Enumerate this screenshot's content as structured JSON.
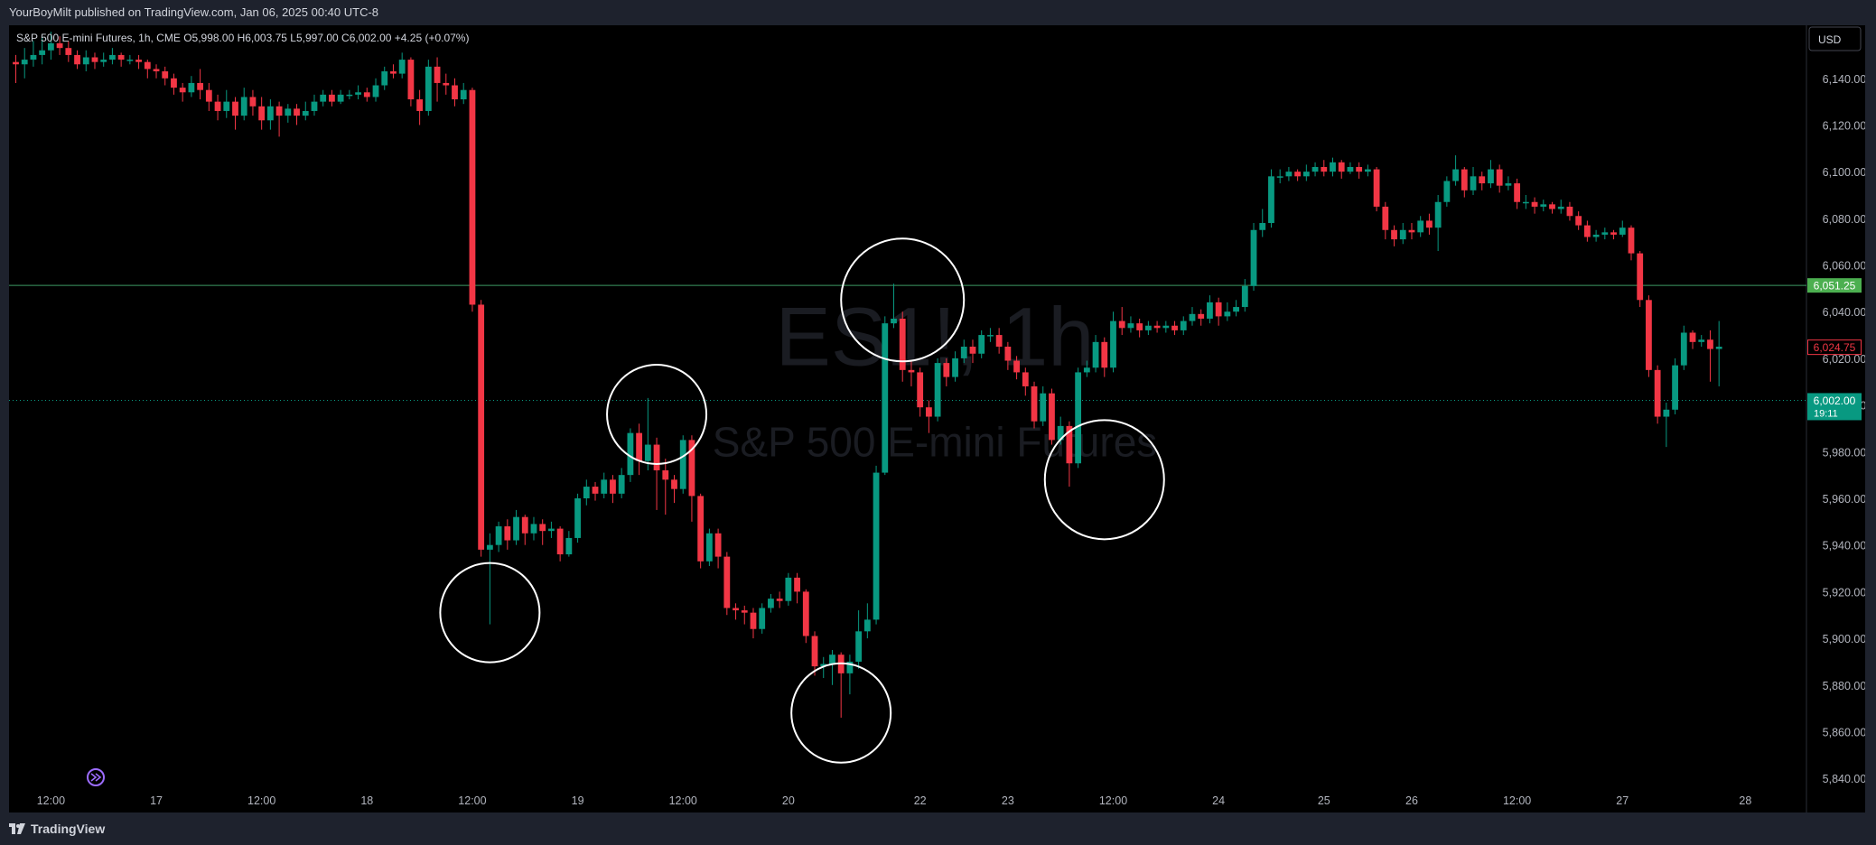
{
  "header": {
    "published": "YourBoyMilt published on TradingView.com, Jan 06, 2025 00:40 UTC-8"
  },
  "legend": {
    "symbol": "S&P 500 E-mini Futures, 1h, CME",
    "open_label": "O",
    "open": "5,998.00",
    "high_label": "H",
    "high": "6,003.75",
    "low_label": "L",
    "low": "5,997.00",
    "close_label": "C",
    "close": "6,002.00",
    "change": "+4.25 (+0.07%)"
  },
  "currency_button": "USD",
  "watermark": {
    "line1": "ES1!, 1h",
    "line2": "S&P 500 E-mini Futures"
  },
  "footer": {
    "brand": "TradingView"
  },
  "colors": {
    "up": "#089981",
    "down": "#f23645",
    "background": "#000000",
    "panel": "#1e222d",
    "hline": "#3d9a63",
    "circle": "#ffffff"
  },
  "chart_data": {
    "type": "candlestick",
    "yticks": [
      5840,
      5860,
      5880,
      5900,
      5920,
      5940,
      5960,
      5980,
      6000,
      6020,
      6040,
      6060,
      6080,
      6100,
      6120,
      6140
    ],
    "ylim": [
      5830,
      6155
    ],
    "xticks": [
      {
        "label": "12:00",
        "t": 4
      },
      {
        "label": "17",
        "t": 16
      },
      {
        "label": "12:00",
        "t": 28
      },
      {
        "label": "18",
        "t": 40
      },
      {
        "label": "12:00",
        "t": 52
      },
      {
        "label": "19",
        "t": 64
      },
      {
        "label": "12:00",
        "t": 76
      },
      {
        "label": "20",
        "t": 88
      },
      {
        "label": "22",
        "t": 103
      },
      {
        "label": "23",
        "t": 113
      },
      {
        "label": "12:00",
        "t": 125
      },
      {
        "label": "24",
        "t": 137
      },
      {
        "label": "25",
        "t": 149
      },
      {
        "label": "26",
        "t": 159
      },
      {
        "label": "12:00",
        "t": 171
      },
      {
        "label": "27",
        "t": 183
      },
      {
        "label": "28",
        "t": 197
      }
    ],
    "price_labels": [
      {
        "value": 6051.25,
        "text": "6,051.25",
        "style": "green"
      },
      {
        "value": 6024.75,
        "text": "6,024.75",
        "style": "red-outline"
      },
      {
        "value": 6002.0,
        "text": "6,002.00",
        "sub": "19:11",
        "style": "teal"
      }
    ],
    "horizontal_lines": [
      {
        "value": 6051.25,
        "style": "solid"
      },
      {
        "value": 6002.0,
        "style": "dotted"
      }
    ],
    "annotations_circles": [
      {
        "t": 54,
        "price": 5911,
        "r": 55
      },
      {
        "t": 73,
        "price": 5996,
        "r": 55
      },
      {
        "t": 94,
        "price": 5868,
        "r": 55
      },
      {
        "t": 101,
        "price": 6045,
        "r": 68
      },
      {
        "t": 124,
        "price": 5968,
        "r": 66
      }
    ],
    "candles": [
      [
        0,
        6147,
        6146,
        6150,
        6138
      ],
      [
        1,
        6146,
        6148,
        6153,
        6140
      ],
      [
        2,
        6148,
        6150,
        6156,
        6145
      ],
      [
        3,
        6150,
        6152,
        6158,
        6146
      ],
      [
        4,
        6152,
        6155,
        6160,
        6148
      ],
      [
        5,
        6155,
        6153,
        6158,
        6150
      ],
      [
        6,
        6153,
        6150,
        6156,
        6147
      ],
      [
        7,
        6150,
        6146,
        6152,
        6144
      ],
      [
        8,
        6146,
        6149,
        6152,
        6143
      ],
      [
        9,
        6149,
        6147,
        6151,
        6144
      ],
      [
        10,
        6147,
        6148,
        6151,
        6145
      ],
      [
        11,
        6148,
        6150,
        6153,
        6146
      ],
      [
        12,
        6150,
        6148,
        6151,
        6145
      ],
      [
        13,
        6148,
        6148,
        6150,
        6146
      ],
      [
        14,
        6148,
        6147,
        6150,
        6144
      ],
      [
        15,
        6147,
        6144,
        6148,
        6140
      ],
      [
        16,
        6144,
        6143,
        6146,
        6140
      ],
      [
        17,
        6143,
        6140,
        6145,
        6137
      ],
      [
        18,
        6140,
        6136,
        6142,
        6133
      ],
      [
        19,
        6136,
        6134,
        6138,
        6130
      ],
      [
        20,
        6134,
        6138,
        6141,
        6132
      ],
      [
        21,
        6138,
        6135,
        6144,
        6131
      ],
      [
        22,
        6135,
        6130,
        6138,
        6126
      ],
      [
        23,
        6130,
        6126,
        6133,
        6122
      ],
      [
        24,
        6126,
        6130,
        6135,
        6123
      ],
      [
        25,
        6130,
        6124,
        6132,
        6118
      ],
      [
        26,
        6124,
        6132,
        6136,
        6122
      ],
      [
        27,
        6132,
        6128,
        6135,
        6124
      ],
      [
        28,
        6128,
        6122,
        6132,
        6118
      ],
      [
        29,
        6122,
        6128,
        6131,
        6118
      ],
      [
        30,
        6128,
        6124,
        6130,
        6115
      ],
      [
        31,
        6124,
        6127,
        6129,
        6121
      ],
      [
        32,
        6127,
        6124,
        6129,
        6120
      ],
      [
        33,
        6124,
        6126,
        6130,
        6122
      ],
      [
        34,
        6126,
        6130,
        6133,
        6124
      ],
      [
        35,
        6130,
        6133,
        6135,
        6128
      ],
      [
        36,
        6133,
        6130,
        6135,
        6128
      ],
      [
        37,
        6130,
        6133,
        6135,
        6129
      ],
      [
        38,
        6133,
        6133,
        6135,
        6131
      ],
      [
        39,
        6133,
        6134,
        6137,
        6131
      ],
      [
        40,
        6134,
        6132,
        6136,
        6130
      ],
      [
        41,
        6132,
        6137,
        6140,
        6130
      ],
      [
        42,
        6137,
        6143,
        6145,
        6135
      ],
      [
        43,
        6143,
        6142,
        6146,
        6140
      ],
      [
        44,
        6142,
        6148,
        6151,
        6140
      ],
      [
        45,
        6148,
        6131,
        6149,
        6128
      ],
      [
        46,
        6131,
        6126,
        6135,
        6120
      ],
      [
        47,
        6126,
        6145,
        6148,
        6124
      ],
      [
        48,
        6145,
        6138,
        6149,
        6130
      ],
      [
        49,
        6138,
        6137,
        6142,
        6133
      ],
      [
        50,
        6137,
        6131,
        6140,
        6128
      ],
      [
        51,
        6131,
        6135,
        6138,
        6129
      ],
      [
        52,
        6135,
        6043,
        6136,
        6040
      ],
      [
        53,
        6043,
        5938,
        6045,
        5935
      ],
      [
        54,
        5938,
        5940,
        5945,
        5906
      ],
      [
        55,
        5940,
        5948,
        5950,
        5937
      ],
      [
        56,
        5948,
        5942,
        5951,
        5938
      ],
      [
        57,
        5942,
        5952,
        5955,
        5940
      ],
      [
        58,
        5952,
        5945,
        5953,
        5940
      ],
      [
        59,
        5945,
        5949,
        5952,
        5942
      ],
      [
        60,
        5949,
        5946,
        5951,
        5940
      ],
      [
        61,
        5946,
        5947,
        5950,
        5943
      ],
      [
        62,
        5947,
        5936,
        5948,
        5933
      ],
      [
        63,
        5936,
        5943,
        5946,
        5935
      ],
      [
        64,
        5943,
        5960,
        5962,
        5941
      ],
      [
        65,
        5960,
        5965,
        5968,
        5957
      ],
      [
        66,
        5965,
        5962,
        5967,
        5959
      ],
      [
        67,
        5962,
        5968,
        5971,
        5960
      ],
      [
        68,
        5968,
        5962,
        5970,
        5958
      ],
      [
        69,
        5962,
        5970,
        5973,
        5960
      ],
      [
        70,
        5970,
        5988,
        5990,
        5967
      ],
      [
        71,
        5988,
        5976,
        5992,
        5970
      ],
      [
        72,
        5976,
        5983,
        6003,
        5972
      ],
      [
        73,
        5983,
        5972,
        5986,
        5955
      ],
      [
        74,
        5972,
        5968,
        5977,
        5953
      ],
      [
        75,
        5968,
        5964,
        5970,
        5958
      ],
      [
        76,
        5964,
        5985,
        5987,
        5962
      ],
      [
        77,
        5985,
        5961,
        5987,
        5950
      ],
      [
        78,
        5961,
        5933,
        5962,
        5930
      ],
      [
        79,
        5933,
        5945,
        5947,
        5931
      ],
      [
        80,
        5945,
        5935,
        5947,
        5930
      ],
      [
        81,
        5935,
        5913,
        5937,
        5910
      ],
      [
        82,
        5913,
        5912,
        5915,
        5908
      ],
      [
        83,
        5912,
        5911,
        5914,
        5906
      ],
      [
        84,
        5911,
        5904,
        5913,
        5900
      ],
      [
        85,
        5904,
        5913,
        5915,
        5902
      ],
      [
        86,
        5913,
        5917,
        5919,
        5911
      ],
      [
        87,
        5917,
        5916,
        5920,
        5913
      ],
      [
        88,
        5916,
        5926,
        5928,
        5914
      ],
      [
        89,
        5926,
        5920,
        5928,
        5915
      ],
      [
        90,
        5920,
        5901,
        5921,
        5898
      ],
      [
        91,
        5901,
        5888,
        5903,
        5884
      ],
      [
        92,
        5888,
        5889,
        5892,
        5883
      ],
      [
        93,
        5889,
        5893,
        5895,
        5880
      ],
      [
        94,
        5893,
        5885,
        5894,
        5866
      ],
      [
        95,
        5885,
        5890,
        5893,
        5876
      ],
      [
        96,
        5890,
        5903,
        5912,
        5887
      ],
      [
        97,
        5903,
        5908,
        5915,
        5900
      ],
      [
        98,
        5908,
        5971,
        5974,
        5906
      ],
      [
        99,
        5971,
        6035,
        6038,
        5970
      ],
      [
        100,
        6035,
        6037,
        6052,
        6033
      ],
      [
        101,
        6037,
        6015,
        6040,
        6010
      ],
      [
        102,
        6015,
        6014,
        6019,
        6008
      ],
      [
        103,
        6014,
        5999,
        6016,
        5995
      ],
      [
        104,
        5999,
        5995,
        6002,
        5988
      ],
      [
        105,
        5995,
        6018,
        6020,
        5993
      ],
      [
        106,
        6018,
        6012,
        6020,
        6008
      ],
      [
        107,
        6012,
        6020,
        6023,
        6010
      ],
      [
        108,
        6020,
        6025,
        6028,
        6018
      ],
      [
        109,
        6025,
        6022,
        6028,
        6018
      ],
      [
        110,
        6022,
        6030,
        6032,
        6020
      ],
      [
        111,
        6030,
        6030,
        6033,
        6027
      ],
      [
        112,
        6030,
        6025,
        6033,
        6022
      ],
      [
        113,
        6025,
        6019,
        6027,
        6015
      ],
      [
        114,
        6019,
        6014,
        6021,
        6011
      ],
      [
        115,
        6014,
        6008,
        6016,
        6004
      ],
      [
        116,
        6008,
        5993,
        6010,
        5990
      ],
      [
        117,
        5993,
        6005,
        6008,
        5991
      ],
      [
        118,
        6005,
        5985,
        6007,
        5983
      ],
      [
        119,
        5985,
        5991,
        5995,
        5983
      ],
      [
        120,
        5991,
        5975,
        5993,
        5965
      ],
      [
        121,
        5975,
        6014,
        6016,
        5973
      ],
      [
        122,
        6014,
        6016,
        6019,
        6012
      ],
      [
        123,
        6016,
        6027,
        6030,
        6014
      ],
      [
        124,
        6027,
        6016,
        6029,
        6012
      ],
      [
        125,
        6016,
        6036,
        6040,
        6014
      ],
      [
        126,
        6036,
        6033,
        6042,
        6030
      ],
      [
        127,
        6033,
        6035,
        6038,
        6031
      ],
      [
        128,
        6035,
        6032,
        6037,
        6029
      ],
      [
        129,
        6032,
        6034,
        6036,
        6030
      ],
      [
        130,
        6034,
        6033,
        6036,
        6031
      ],
      [
        131,
        6033,
        6034,
        6036,
        6031
      ],
      [
        132,
        6034,
        6032,
        6036,
        6030
      ],
      [
        133,
        6032,
        6036,
        6038,
        6030
      ],
      [
        134,
        6036,
        6039,
        6042,
        6034
      ],
      [
        135,
        6039,
        6037,
        6041,
        6034
      ],
      [
        136,
        6037,
        6044,
        6047,
        6035
      ],
      [
        137,
        6044,
        6038,
        6046,
        6034
      ],
      [
        138,
        6038,
        6040,
        6044,
        6036
      ],
      [
        139,
        6040,
        6042,
        6045,
        6038
      ],
      [
        140,
        6042,
        6051,
        6054,
        6040
      ],
      [
        141,
        6051,
        6075,
        6078,
        6049
      ],
      [
        142,
        6075,
        6078,
        6084,
        6072
      ],
      [
        143,
        6078,
        6098,
        6101,
        6076
      ],
      [
        144,
        6098,
        6098,
        6101,
        6095
      ],
      [
        145,
        6098,
        6100,
        6102,
        6096
      ],
      [
        146,
        6100,
        6098,
        6101,
        6096
      ],
      [
        147,
        6098,
        6100,
        6103,
        6096
      ],
      [
        148,
        6100,
        6102,
        6104,
        6098
      ],
      [
        149,
        6102,
        6100,
        6105,
        6098
      ],
      [
        150,
        6100,
        6104,
        6106,
        6098
      ],
      [
        151,
        6104,
        6100,
        6105,
        6097
      ],
      [
        152,
        6100,
        6102,
        6104,
        6099
      ],
      [
        153,
        6102,
        6100,
        6104,
        6097
      ],
      [
        154,
        6100,
        6101,
        6103,
        6098
      ],
      [
        155,
        6101,
        6085,
        6102,
        6083
      ],
      [
        156,
        6085,
        6075,
        6087,
        6071
      ],
      [
        157,
        6075,
        6071,
        6077,
        6068
      ],
      [
        158,
        6071,
        6075,
        6078,
        6069
      ],
      [
        159,
        6075,
        6074,
        6078,
        6071
      ],
      [
        160,
        6074,
        6079,
        6081,
        6072
      ],
      [
        161,
        6079,
        6076,
        6082,
        6073
      ],
      [
        162,
        6076,
        6087,
        6090,
        6066
      ],
      [
        163,
        6087,
        6096,
        6098,
        6085
      ],
      [
        164,
        6096,
        6101,
        6107,
        6094
      ],
      [
        165,
        6101,
        6092,
        6102,
        6089
      ],
      [
        166,
        6092,
        6098,
        6102,
        6090
      ],
      [
        167,
        6098,
        6095,
        6100,
        6092
      ],
      [
        168,
        6095,
        6101,
        6105,
        6093
      ],
      [
        169,
        6101,
        6094,
        6103,
        6091
      ],
      [
        170,
        6094,
        6095,
        6098,
        6092
      ],
      [
        171,
        6095,
        6087,
        6097,
        6084
      ],
      [
        172,
        6087,
        6087,
        6090,
        6084
      ],
      [
        173,
        6087,
        6085,
        6089,
        6082
      ],
      [
        174,
        6085,
        6086,
        6088,
        6083
      ],
      [
        175,
        6086,
        6084,
        6087,
        6082
      ],
      [
        176,
        6084,
        6085,
        6088,
        6082
      ],
      [
        177,
        6085,
        6081,
        6087,
        6079
      ],
      [
        178,
        6081,
        6077,
        6083,
        6075
      ],
      [
        179,
        6077,
        6072,
        6079,
        6070
      ],
      [
        180,
        6072,
        6073,
        6075,
        6070
      ],
      [
        181,
        6073,
        6074,
        6076,
        6071
      ],
      [
        182,
        6074,
        6073,
        6075,
        6071
      ],
      [
        183,
        6073,
        6076,
        6079,
        6072
      ],
      [
        184,
        6076,
        6065,
        6077,
        6062
      ],
      [
        185,
        6065,
        6045,
        6066,
        6042
      ],
      [
        186,
        6045,
        6015,
        6047,
        6012
      ],
      [
        187,
        6015,
        5995,
        6017,
        5992
      ],
      [
        188,
        5995,
        5998,
        6001,
        5982
      ],
      [
        189,
        5998,
        6017,
        6020,
        5996
      ],
      [
        190,
        6017,
        6031,
        6034,
        6015
      ],
      [
        191,
        6031,
        6027,
        6032,
        6024
      ],
      [
        192,
        6027,
        6028,
        6030,
        6025
      ],
      [
        193,
        6028,
        6024,
        6032,
        6010
      ],
      [
        194,
        6024,
        6025,
        6036,
        6008
      ]
    ]
  }
}
